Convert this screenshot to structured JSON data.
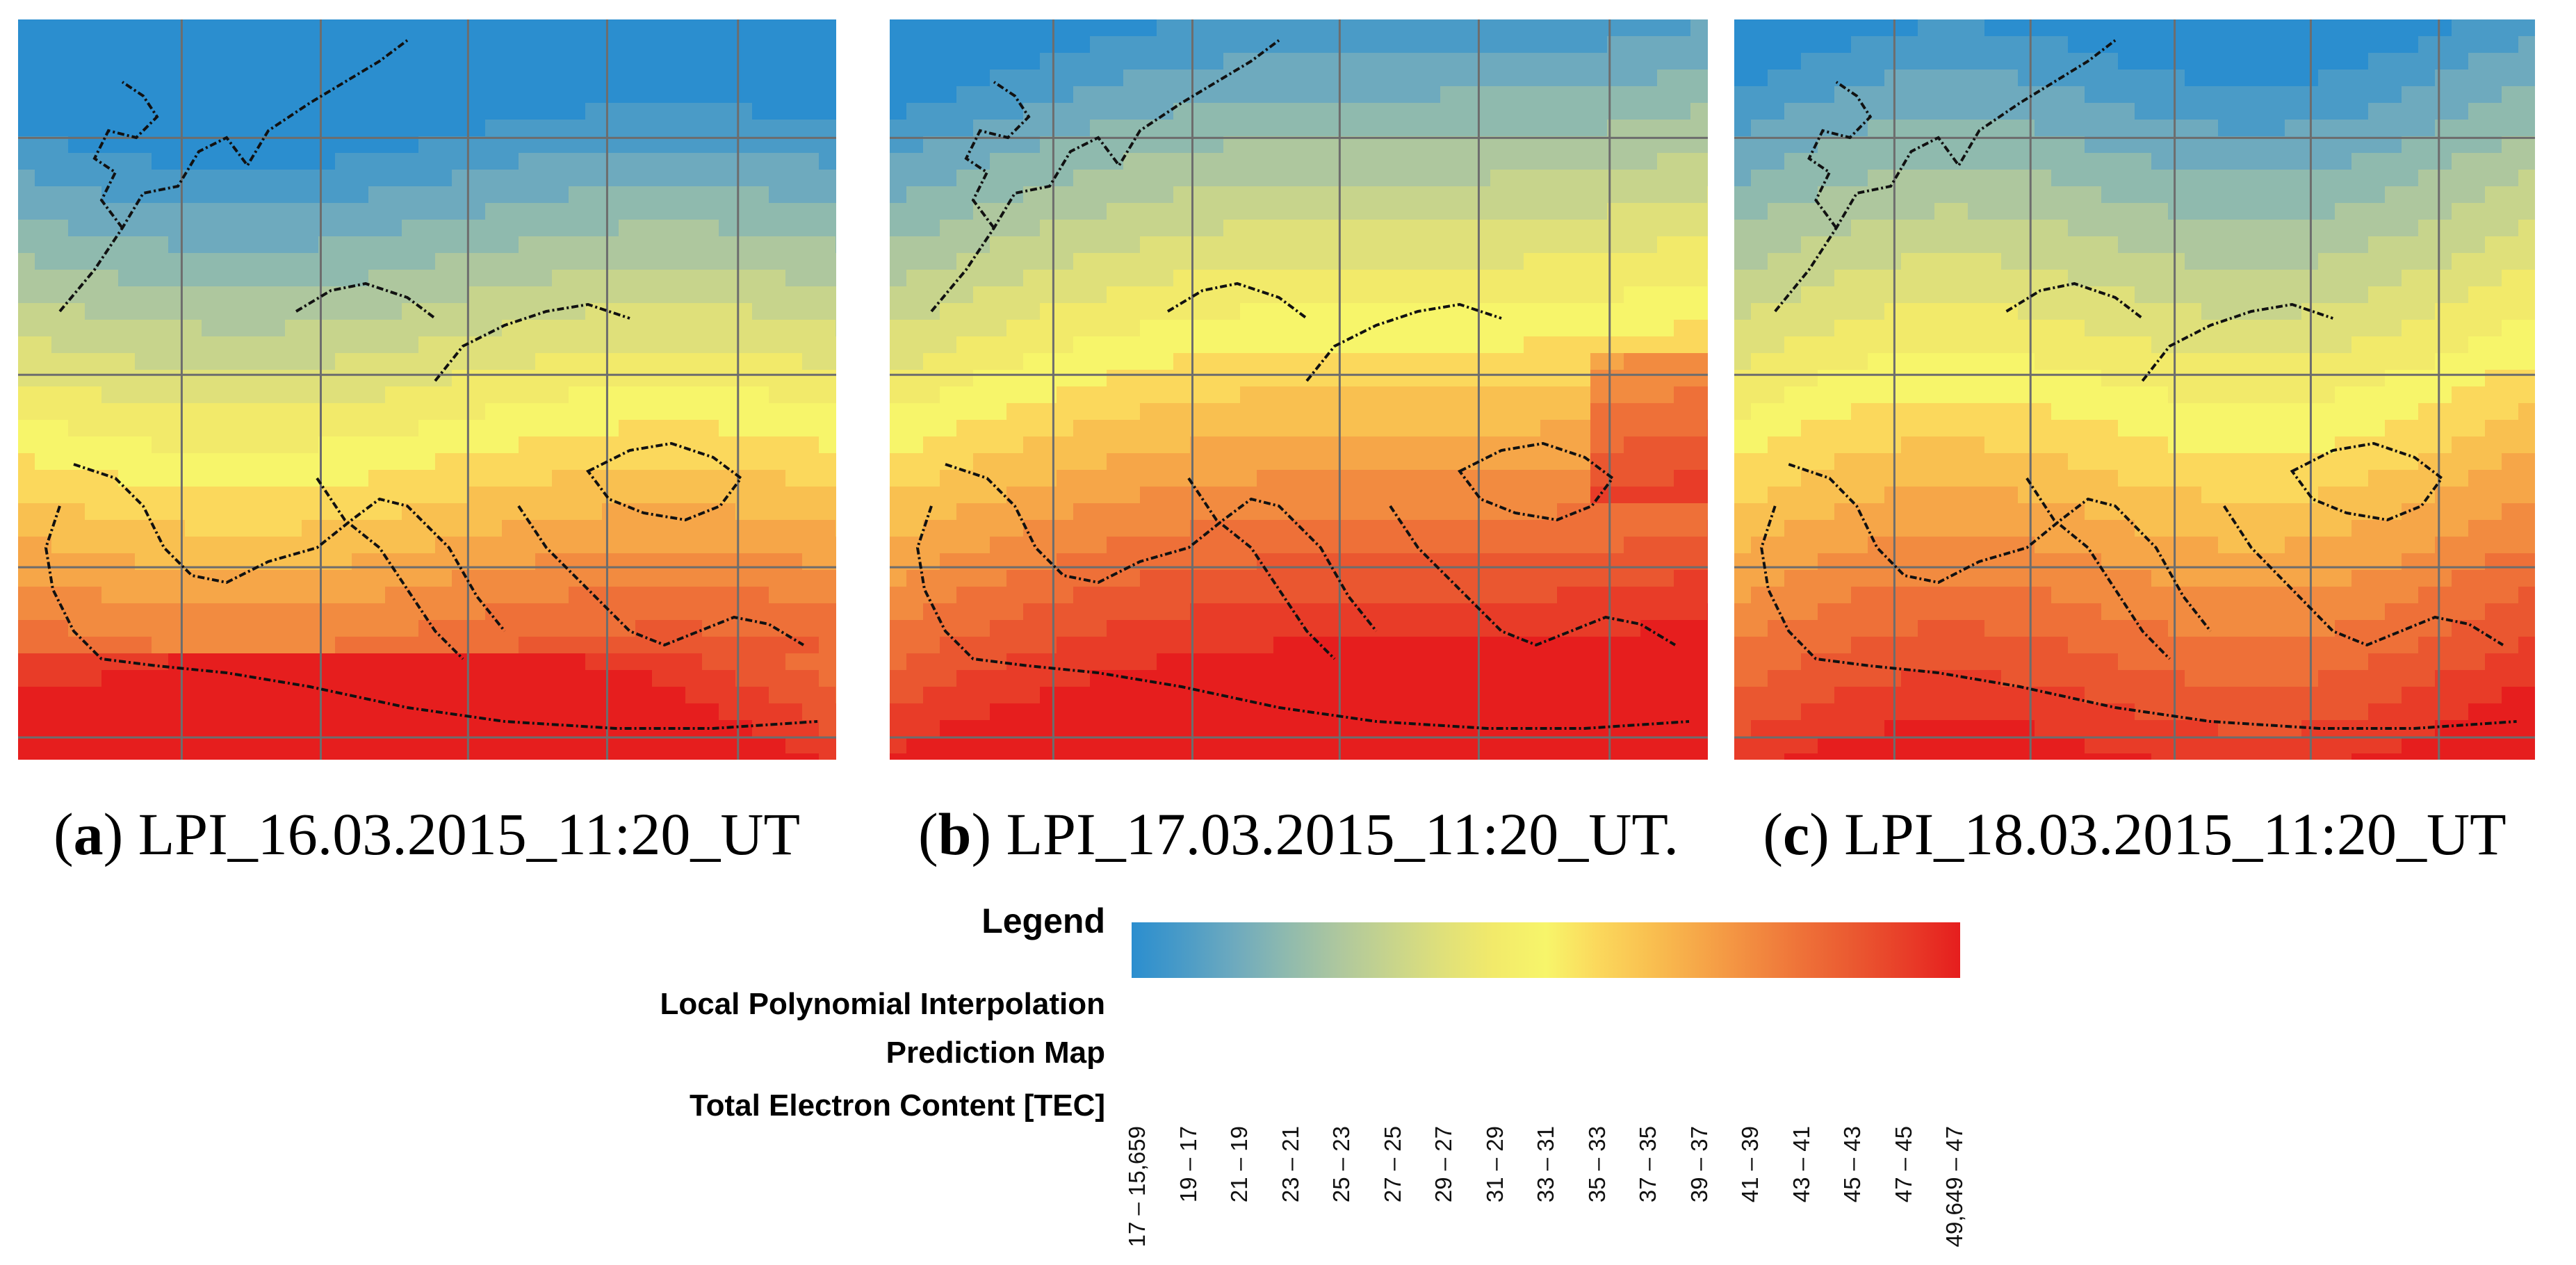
{
  "panels": [
    {
      "id": "a",
      "letter": "a",
      "caption": "LPI_16.03.2015_11:20_UT"
    },
    {
      "id": "b",
      "letter": "b",
      "caption": "LPI_17.03.2015_11:20_UT."
    },
    {
      "id": "c",
      "letter": "c",
      "caption": "LPI_18.03.2015_11:20_UT"
    }
  ],
  "caption_parens": {
    "open": "(",
    "close": ")"
  },
  "legend": {
    "title": "Legend",
    "line1": "Local Polynomial Interpolation",
    "line2": "Prediction Map",
    "line3": "Total Electron Content [TEC]",
    "classes": [
      "17 – 15,659",
      "19 – 17",
      "21 – 19",
      "23 – 21",
      "25 – 23",
      "27 – 25",
      "29 – 27",
      "31 – 29",
      "33 – 31",
      "35 – 33",
      "37 – 35",
      "39 – 37",
      "41 – 39",
      "43 – 41",
      "45 – 43",
      "47 – 45",
      "49,649 – 47"
    ],
    "colors": [
      "#2b8ecf",
      "#4a9bc7",
      "#6eaabe",
      "#8fbaae",
      "#aec79e",
      "#c7d48c",
      "#dfe07a",
      "#f2ea6a",
      "#f7f56a",
      "#fbd85c",
      "#f9c050",
      "#f6a648",
      "#f28b40",
      "#ee7038",
      "#ea5730",
      "#e83c28",
      "#e61e1e"
    ]
  }
}
